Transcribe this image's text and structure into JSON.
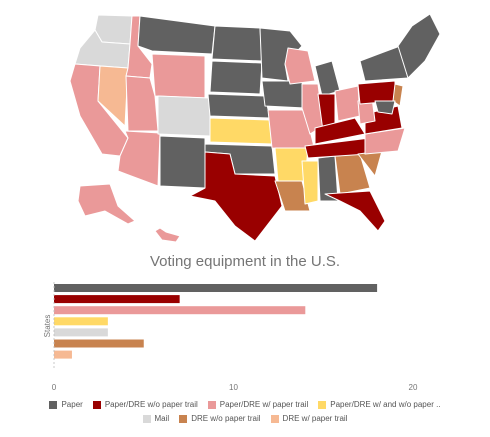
{
  "title": "Voting equipment in the U.S.",
  "chart_data": {
    "type": "bar",
    "orientation": "horizontal",
    "title": "Voting equipment in the U.S.",
    "xlabel": "",
    "ylabel": "States",
    "xlim": [
      0,
      22
    ],
    "xticks": [
      0,
      10,
      20
    ],
    "grid": false,
    "legend_position": "bottom",
    "categories": [
      "Paper",
      "Paper/DRE w/o paper trail",
      "Paper/DRE w/ paper trail",
      "Paper/DRE w/ and w/o paper ..",
      "Mail",
      "DRE w/o paper trail",
      "DRE w/ paper trail"
    ],
    "values": [
      18,
      7,
      14,
      3,
      3,
      5,
      1
    ],
    "colors": [
      "#616161",
      "#990000",
      "#ea9999",
      "#ffd966",
      "#d9d9d9",
      "#c8834f",
      "#f6b993"
    ]
  },
  "map": {
    "colors": {
      "paper": "#616161",
      "paper_dre_no_trail": "#990000",
      "paper_dre_trail": "#ea9999",
      "paper_dre_mixed": "#ffd966",
      "mail": "#d9d9d9",
      "dre_no_trail": "#c8834f",
      "dre_trail": "#f6b993"
    }
  }
}
